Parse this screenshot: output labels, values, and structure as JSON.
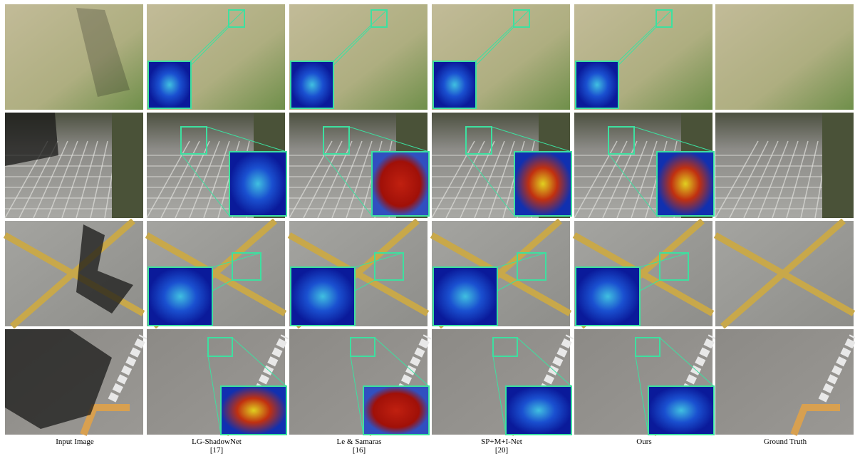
{
  "columns": [
    {
      "label": "Input Image"
    },
    {
      "label": "LG-ShadowNet",
      "ref": "[17]"
    },
    {
      "label": "Le & Samaras",
      "ref": "[16]"
    },
    {
      "label": "SP+M+I-Net",
      "ref": "[20]"
    },
    {
      "label": "Ours"
    },
    {
      "label": "Ground Truth"
    }
  ]
}
